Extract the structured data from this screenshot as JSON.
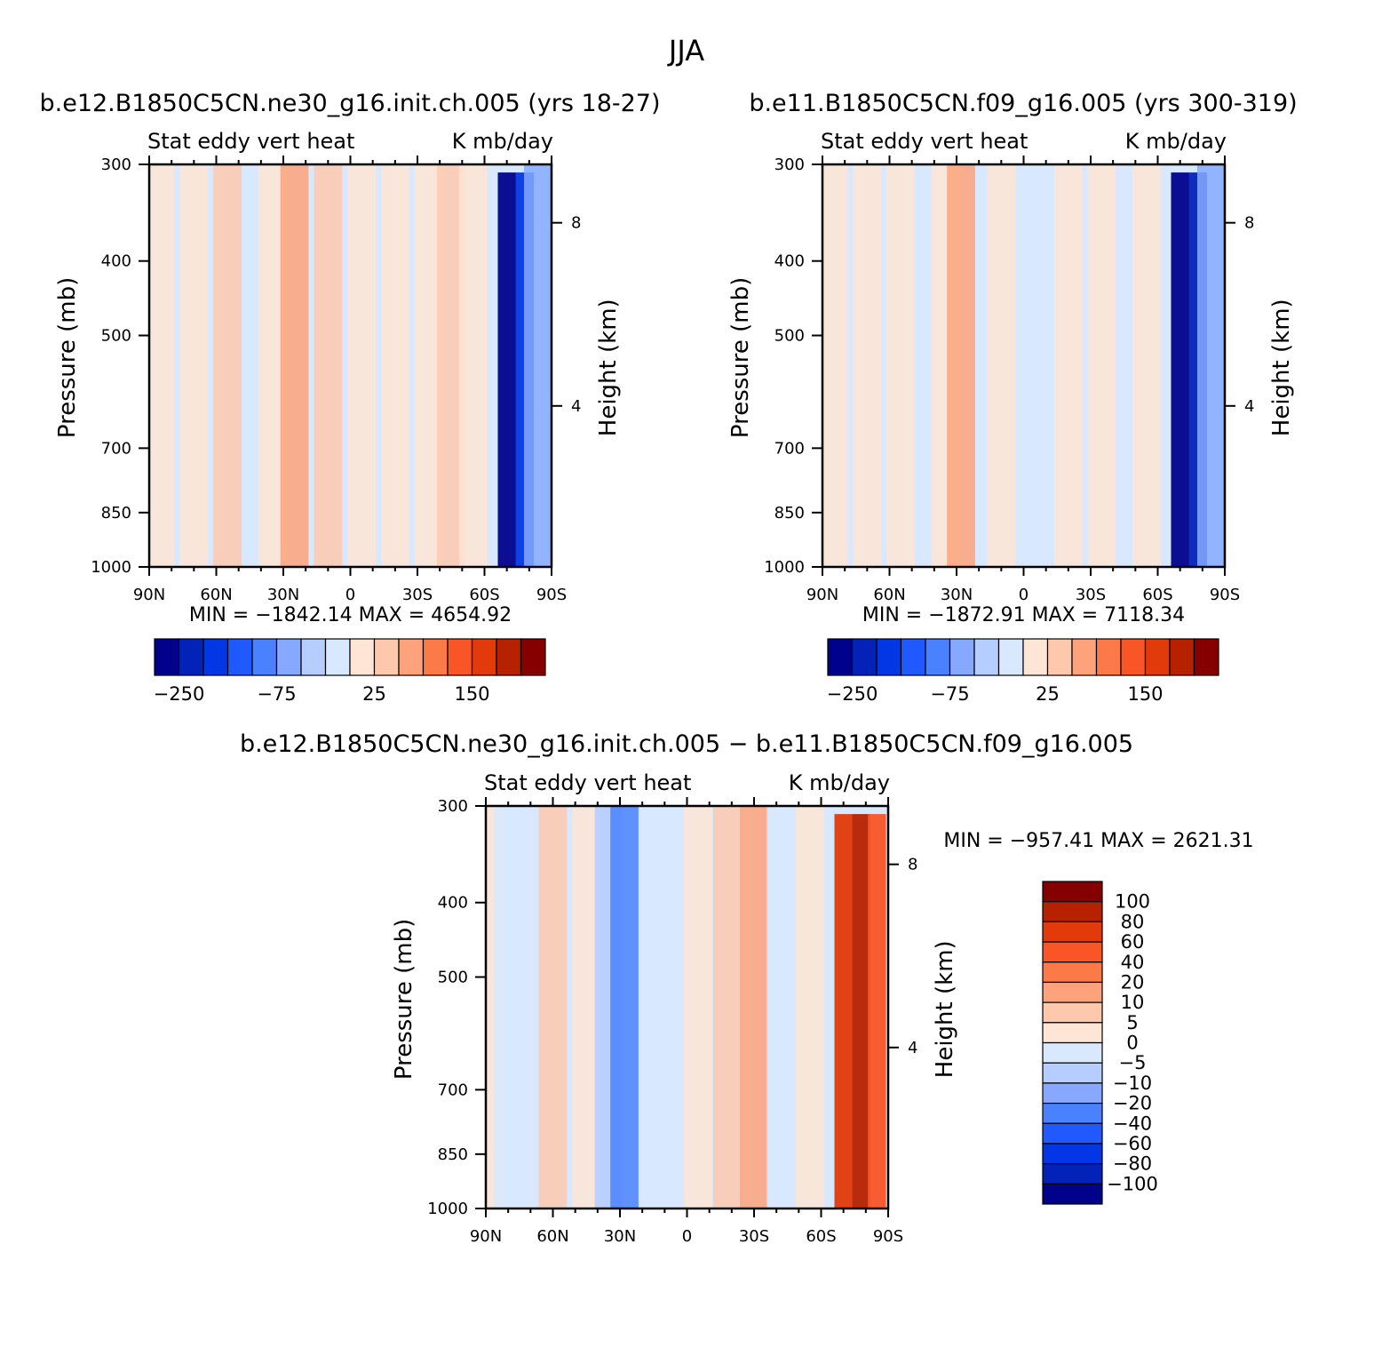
{
  "figure": {
    "season": "JJA"
  },
  "chart_data": [
    {
      "type": "heatmap",
      "id": "p1",
      "title": "b.e12.B1850C5CN.ne30_g16.init.ch.005 (yrs 18-27)",
      "subtitle_left": "Stat eddy vert heat",
      "subtitle_right": "K mb/day",
      "xlabel": "",
      "ylabel": "Pressure (mb)",
      "y2label": "Height (km)",
      "x_ticks": [
        "90N",
        "60N",
        "30N",
        "0",
        "30S",
        "60S",
        "90S"
      ],
      "y_ticks": [
        "300",
        "400",
        "500",
        "700",
        "850",
        "1000"
      ],
      "y2_ticks": [
        "8",
        "4"
      ],
      "stats": "MIN = −1842.14   MAX = 4654.92",
      "colorbar_labels": [
        "−250",
        "−75",
        "25",
        "150"
      ],
      "min": -1842.14,
      "max": 4654.92,
      "bands": [
        {
          "lat": -85,
          "lev": 1
        },
        {
          "lat": -70,
          "lev": 1
        },
        {
          "lat": -55,
          "lev": 2
        },
        {
          "lat": -35,
          "lev": 1
        },
        {
          "lat": -25,
          "lev": 3
        },
        {
          "lat": -10,
          "lev": 2
        },
        {
          "lat": 5,
          "lev": 1
        },
        {
          "lat": 20,
          "lev": 1
        },
        {
          "lat": 35,
          "lev": 1
        },
        {
          "lat": 45,
          "lev": 2
        },
        {
          "lat": 55,
          "lev": 1
        },
        {
          "lat": 70,
          "lev": -8
        },
        {
          "lat": 78,
          "lev": -6
        },
        {
          "lat": 84,
          "lev": -3
        }
      ]
    },
    {
      "type": "heatmap",
      "id": "p2",
      "title": "b.e11.B1850C5CN.f09_g16.005 (yrs 300-319)",
      "subtitle_left": "Stat eddy vert heat",
      "subtitle_right": "K mb/day",
      "xlabel": "",
      "ylabel": "Pressure (mb)",
      "y2label": "Height (km)",
      "x_ticks": [
        "90N",
        "60N",
        "30N",
        "0",
        "30S",
        "60S",
        "90S"
      ],
      "y_ticks": [
        "300",
        "400",
        "500",
        "700",
        "850",
        "1000"
      ],
      "y2_ticks": [
        "8",
        "4"
      ],
      "stats": "MIN = −1872.91   MAX = 7118.34",
      "colorbar_labels": [
        "−250",
        "−75",
        "25",
        "150"
      ],
      "min": -1872.91,
      "max": 7118.34,
      "bands": [
        {
          "lat": -85,
          "lev": 1
        },
        {
          "lat": -70,
          "lev": 1
        },
        {
          "lat": -55,
          "lev": 1
        },
        {
          "lat": -35,
          "lev": 1
        },
        {
          "lat": -28,
          "lev": 3
        },
        {
          "lat": -10,
          "lev": 1
        },
        {
          "lat": 20,
          "lev": 1
        },
        {
          "lat": 35,
          "lev": 1
        },
        {
          "lat": 55,
          "lev": 1
        },
        {
          "lat": 70,
          "lev": -8
        },
        {
          "lat": 78,
          "lev": -7
        },
        {
          "lat": 84,
          "lev": -3
        }
      ]
    },
    {
      "type": "heatmap",
      "id": "p3",
      "title": "b.e12.B1850C5CN.ne30_g16.init.ch.005 − b.e11.B1850C5CN.f09_g16.005",
      "subtitle_left": "Stat eddy vert heat",
      "subtitle_right": "K mb/day",
      "xlabel": "",
      "ylabel": "Pressure (mb)",
      "y2label": "Height (km)",
      "x_ticks": [
        "90N",
        "60N",
        "30N",
        "0",
        "30S",
        "60S",
        "90S"
      ],
      "y_ticks": [
        "300",
        "400",
        "500",
        "700",
        "850",
        "1000"
      ],
      "y2_ticks": [
        "8",
        "4"
      ],
      "stats": "MIN = −957.41   MAX = 2621.31",
      "colorbar_labels": [
        "100",
        "80",
        "60",
        "40",
        "20",
        "10",
        "5",
        "0",
        "−5",
        "−10",
        "−20",
        "−40",
        "−60",
        "−80",
        "−100"
      ],
      "min": -957.41,
      "max": 2621.31,
      "bands": [
        {
          "lat": -88,
          "lev": 1
        },
        {
          "lat": -80,
          "lev": -1
        },
        {
          "lat": -60,
          "lev": 2
        },
        {
          "lat": -45,
          "lev": 1
        },
        {
          "lat": -35,
          "lev": -2
        },
        {
          "lat": -28,
          "lev": -4
        },
        {
          "lat": -15,
          "lev": -1
        },
        {
          "lat": 5,
          "lev": 1
        },
        {
          "lat": 18,
          "lev": 2
        },
        {
          "lat": 30,
          "lev": 3
        },
        {
          "lat": 42,
          "lev": -1
        },
        {
          "lat": 55,
          "lev": 1
        },
        {
          "lat": 70,
          "lev": 6
        },
        {
          "lat": 78,
          "lev": 7
        },
        {
          "lat": 85,
          "lev": 5
        }
      ]
    }
  ],
  "colors": {
    "palette": [
      "#00028c",
      "#0323b8",
      "#0337e6",
      "#1f59ff",
      "#4a81ff",
      "#86a9ff",
      "#b5cdff",
      "#d8e8fe",
      "#fee5d5",
      "#fec8ad",
      "#fda27a",
      "#fb7a48",
      "#f95526",
      "#e23a0b",
      "#b62100",
      "#870000"
    ]
  }
}
